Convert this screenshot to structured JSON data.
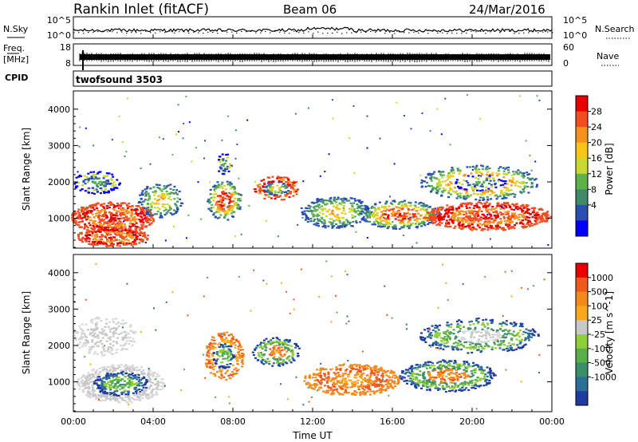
{
  "header": {
    "station": "Rankin Inlet (fitACF)",
    "beam": "Beam 06",
    "date": "24/Mar/2016"
  },
  "side_labels": {
    "nsky": "N.Sky",
    "nsearch": "N.Search",
    "freq": "Freq.",
    "mhz": "[MHz]",
    "nave": "Nave",
    "cpid": "CPID"
  },
  "noise_panel": {
    "tick_top": "10^5",
    "tick_bottom": "10^0",
    "tick_top_right": "10^5",
    "tick_bottom_right": "10^0"
  },
  "freq_panel": {
    "left_ticks": [
      "18",
      "8"
    ],
    "right_ticks": [
      "60",
      "0"
    ]
  },
  "cpid_panel": {
    "name": "twofsound 3503"
  },
  "chart_data": [
    {
      "type": "heatmap",
      "parameter": "Power",
      "ylabel": "Slant Range [km]",
      "colorbar_label": "Power [dB]",
      "yticks": [
        "1000",
        "2000",
        "3000",
        "4000"
      ],
      "ylim": [
        180,
        4500
      ],
      "colorbar_ticks": [
        "4",
        "8",
        "12",
        "16",
        "20",
        "24",
        "28"
      ],
      "colorbar_range": [
        0,
        32
      ],
      "colors": [
        "#0000ff",
        "#2a4fb0",
        "#3e8a6a",
        "#5fb14a",
        "#c8d832",
        "#f5c518",
        "#f6921e",
        "#f24c1f",
        "#e80000"
      ]
    },
    {
      "type": "heatmap",
      "parameter": "Velocity",
      "ylabel": "Slant Range [km]",
      "colorbar_label": "Velocity [m s^-1]",
      "yticks": [
        "1000",
        "2000",
        "3000",
        "4000"
      ],
      "ylim": [
        180,
        4500
      ],
      "colorbar_ticks": [
        "1000",
        "500",
        "100",
        "25",
        "-25",
        "-100",
        "-500",
        "-1000"
      ],
      "colors": [
        "#1e3ca0",
        "#2c6e96",
        "#3a8f68",
        "#5aae48",
        "#8fcf3c",
        "#c8c8c8",
        "#f7a81e",
        "#f48a1c",
        "#ef5a1c",
        "#e80000"
      ]
    }
  ],
  "x_axis": {
    "ticks": [
      "00:00",
      "04:00",
      "08:00",
      "12:00",
      "16:00",
      "20:00",
      "00:00"
    ],
    "label": "Time UT"
  }
}
